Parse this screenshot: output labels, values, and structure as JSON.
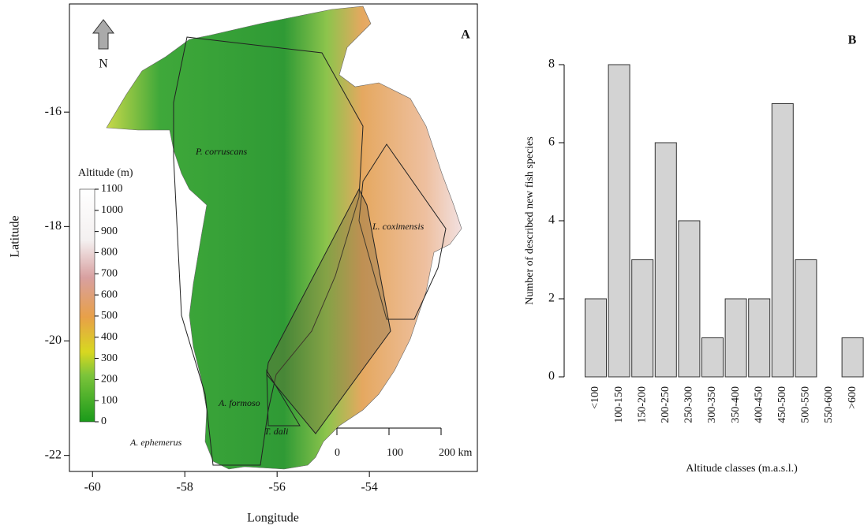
{
  "chart_data": [
    {
      "type": "map",
      "panel": "A",
      "xlabel": "Longitude",
      "ylabel": "Latitude",
      "xlim": [
        -60.5,
        -51.66
      ],
      "ylim": [
        -22.28,
        -14.11
      ],
      "xticks": [
        -60,
        -58,
        -56,
        -54
      ],
      "yticks": [
        -22,
        -20,
        -18,
        -16
      ],
      "north_label": "N",
      "legend_title": "Altitude (m)",
      "legend_lim": [
        0,
        1100
      ],
      "legend_ticks": [
        0,
        100,
        200,
        300,
        400,
        500,
        600,
        700,
        800,
        900,
        1000,
        1100
      ],
      "scale_lim": [
        0,
        200
      ],
      "scale_ticks": [
        0,
        100,
        {
          "value": 200,
          "label": "200 km"
        }
      ],
      "annotations": [
        "P. corruscans",
        "L. coximensis",
        "A. formoso",
        "T. dali",
        "A. ephemerus"
      ]
    },
    {
      "type": "bar",
      "panel": "B",
      "xlabel": "Altitude classes (m.a.s.l.)",
      "ylabel": "Number of described new fish species",
      "categories": [
        "<100",
        "100-150",
        "150-200",
        "200-250",
        "250-300",
        "300-350",
        "350-400",
        "400-450",
        "450-500",
        "500-550",
        "550-600",
        ">600"
      ],
      "values": [
        2,
        8,
        3,
        6,
        4,
        1,
        2,
        2,
        7,
        3,
        0,
        1
      ],
      "color": "#d3d3d3",
      "ylim": [
        0,
        8
      ],
      "yticks": [
        0,
        2,
        4,
        6,
        8
      ]
    }
  ]
}
